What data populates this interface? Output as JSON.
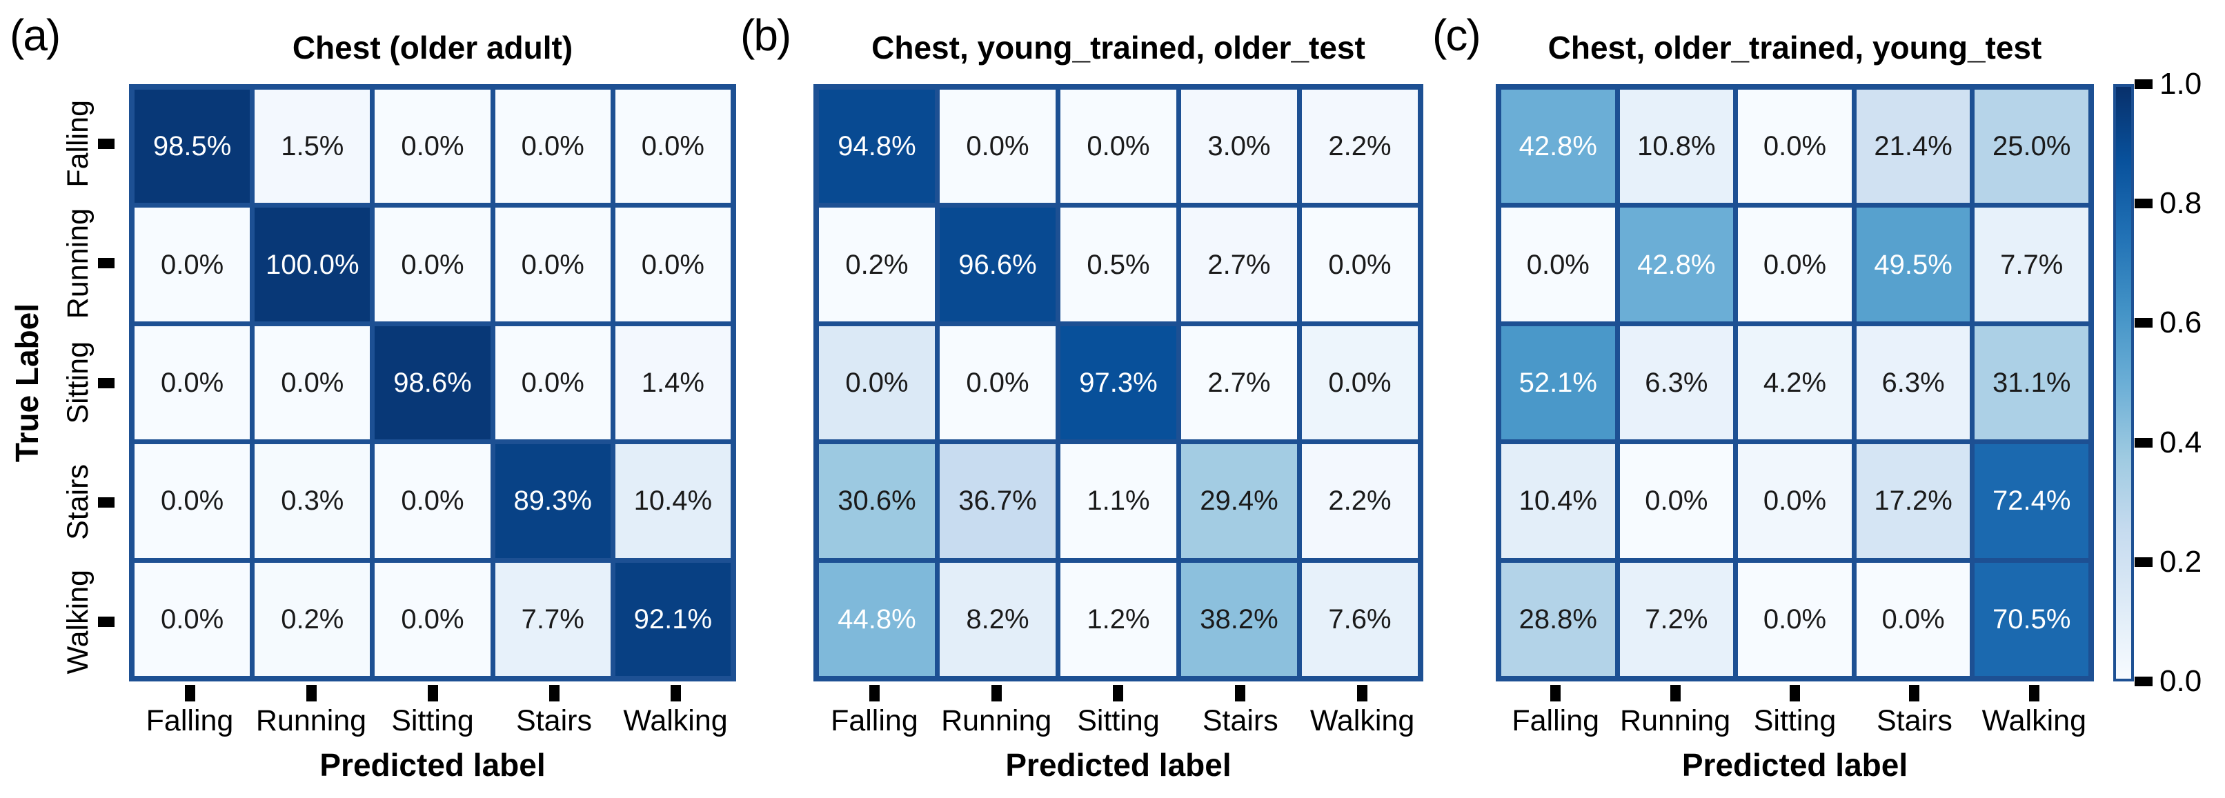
{
  "figure": {
    "classes": [
      "Falling",
      "Running",
      "Sitting",
      "Stairs",
      "Walking"
    ],
    "x_axis_label": "Predicted label",
    "y_axis_label": "True Label",
    "colorbar_ticks": [
      "1.0",
      "0.8",
      "0.6",
      "0.4",
      "0.2",
      "0.0"
    ],
    "colors": {
      "border": "#1d5093",
      "cell_text_dark": "#1a1a1a",
      "cell_text_light": "#ffffff",
      "cmap": [
        "#f7fbff",
        "#deebf7",
        "#c6dbef",
        "#9ecae1",
        "#6baed6",
        "#4292c6",
        "#2171b5",
        "#08519c",
        "#08306b"
      ]
    },
    "panels": [
      {
        "letter": "(a)",
        "title": "Chest (older adult)",
        "rows": [
          [
            {
              "v": "98.5%",
              "s": 0.97,
              "w": true
            },
            {
              "v": "1.5%",
              "s": 0.02
            },
            {
              "v": "0.0%",
              "s": 0
            },
            {
              "v": "0.0%",
              "s": 0
            },
            {
              "v": "0.0%",
              "s": 0
            }
          ],
          [
            {
              "v": "0.0%",
              "s": 0
            },
            {
              "v": "100.0%",
              "s": 0.97,
              "w": true
            },
            {
              "v": "0.0%",
              "s": 0
            },
            {
              "v": "0.0%",
              "s": 0
            },
            {
              "v": "0.0%",
              "s": 0
            }
          ],
          [
            {
              "v": "0.0%",
              "s": 0
            },
            {
              "v": "0.0%",
              "s": 0
            },
            {
              "v": "98.6%",
              "s": 0.97,
              "w": true
            },
            {
              "v": "0.0%",
              "s": 0
            },
            {
              "v": "1.4%",
              "s": 0.02
            }
          ],
          [
            {
              "v": "0.0%",
              "s": 0
            },
            {
              "v": "0.3%",
              "s": 0.01
            },
            {
              "v": "0.0%",
              "s": 0
            },
            {
              "v": "89.3%",
              "s": 0.93,
              "w": true
            },
            {
              "v": "10.4%",
              "s": 0.1
            }
          ],
          [
            {
              "v": "0.0%",
              "s": 0
            },
            {
              "v": "0.2%",
              "s": 0.01
            },
            {
              "v": "0.0%",
              "s": 0
            },
            {
              "v": "7.7%",
              "s": 0.08
            },
            {
              "v": "92.1%",
              "s": 0.94,
              "w": true
            }
          ]
        ]
      },
      {
        "letter": "(b)",
        "title": "Chest, young_trained, older_test",
        "rows": [
          [
            {
              "v": "94.8%",
              "s": 0.9,
              "w": true
            },
            {
              "v": "0.0%",
              "s": 0
            },
            {
              "v": "0.0%",
              "s": 0
            },
            {
              "v": "3.0%",
              "s": 0.02
            },
            {
              "v": "2.2%",
              "s": 0.02
            }
          ],
          [
            {
              "v": "0.2%",
              "s": 0
            },
            {
              "v": "96.6%",
              "s": 0.9,
              "w": true
            },
            {
              "v": "0.5%",
              "s": 0
            },
            {
              "v": "2.7%",
              "s": 0.02
            },
            {
              "v": "0.0%",
              "s": 0
            }
          ],
          [
            {
              "v": "0.0%",
              "s": 0.14
            },
            {
              "v": "0.0%",
              "s": 0
            },
            {
              "v": "97.3%",
              "s": 0.88,
              "w": true
            },
            {
              "v": "2.7%",
              "s": 0
            },
            {
              "v": "0.0%",
              "s": 0.05
            }
          ],
          [
            {
              "v": "30.6%",
              "s": 0.38
            },
            {
              "v": "36.7%",
              "s": 0.24
            },
            {
              "v": "1.1%",
              "s": 0
            },
            {
              "v": "29.4%",
              "s": 0.36
            },
            {
              "v": "2.2%",
              "s": 0.02
            }
          ],
          [
            {
              "v": "44.8%",
              "s": 0.45,
              "w": true
            },
            {
              "v": "8.2%",
              "s": 0.1
            },
            {
              "v": "1.2%",
              "s": 0
            },
            {
              "v": "38.2%",
              "s": 0.42
            },
            {
              "v": "7.6%",
              "s": 0.08
            }
          ]
        ]
      },
      {
        "letter": "(c)",
        "title": "Chest, older_trained, young_test",
        "rows": [
          [
            {
              "v": "42.8%",
              "s": 0.5,
              "w": true
            },
            {
              "v": "10.8%",
              "s": 0.08
            },
            {
              "v": "0.0%",
              "s": 0
            },
            {
              "v": "21.4%",
              "s": 0.2
            },
            {
              "v": "25.0%",
              "s": 0.3
            }
          ],
          [
            {
              "v": "0.0%",
              "s": 0
            },
            {
              "v": "42.8%",
              "s": 0.5,
              "w": true
            },
            {
              "v": "0.0%",
              "s": 0
            },
            {
              "v": "49.5%",
              "s": 0.56,
              "w": true
            },
            {
              "v": "7.7%",
              "s": 0.08
            }
          ],
          [
            {
              "v": "52.1%",
              "s": 0.6,
              "w": true
            },
            {
              "v": "6.3%",
              "s": 0.07
            },
            {
              "v": "4.2%",
              "s": 0.05
            },
            {
              "v": "6.3%",
              "s": 0.07
            },
            {
              "v": "31.1%",
              "s": 0.33
            }
          ],
          [
            {
              "v": "10.4%",
              "s": 0.1
            },
            {
              "v": "0.0%",
              "s": 0
            },
            {
              "v": "0.0%",
              "s": 0.03
            },
            {
              "v": "17.2%",
              "s": 0.17
            },
            {
              "v": "72.4%",
              "s": 0.78,
              "w": true
            }
          ],
          [
            {
              "v": "28.8%",
              "s": 0.31
            },
            {
              "v": "7.2%",
              "s": 0.08
            },
            {
              "v": "0.0%",
              "s": 0
            },
            {
              "v": "0.0%",
              "s": 0
            },
            {
              "v": "70.5%",
              "s": 0.78,
              "w": true
            }
          ]
        ]
      }
    ]
  },
  "chart_data": [
    {
      "type": "heatmap",
      "subtype": "confusion-matrix",
      "title": "Chest (older adult)",
      "xlabel": "Predicted label",
      "ylabel": "True Label",
      "x_categories": [
        "Falling",
        "Running",
        "Sitting",
        "Stairs",
        "Walking"
      ],
      "y_categories": [
        "Falling",
        "Running",
        "Sitting",
        "Stairs",
        "Walking"
      ],
      "values_percent": [
        [
          98.5,
          1.5,
          0.0,
          0.0,
          0.0
        ],
        [
          0.0,
          100.0,
          0.0,
          0.0,
          0.0
        ],
        [
          0.0,
          0.0,
          98.6,
          0.0,
          1.4
        ],
        [
          0.0,
          0.3,
          0.0,
          89.3,
          10.4
        ],
        [
          0.0,
          0.2,
          0.0,
          7.7,
          92.1
        ]
      ],
      "colormap": "Blues",
      "colorbar_range": [
        0.0,
        1.0
      ],
      "colorbar_ticks": [
        1.0,
        0.8,
        0.6,
        0.4,
        0.2,
        0.0
      ],
      "legend_position": "right"
    },
    {
      "type": "heatmap",
      "subtype": "confusion-matrix",
      "title": "Chest, young_trained, older_test",
      "xlabel": "Predicted label",
      "ylabel": "True Label",
      "x_categories": [
        "Falling",
        "Running",
        "Sitting",
        "Stairs",
        "Walking"
      ],
      "y_categories": [
        "Falling",
        "Running",
        "Sitting",
        "Stairs",
        "Walking"
      ],
      "values_percent": [
        [
          94.8,
          0.0,
          0.0,
          3.0,
          2.2
        ],
        [
          0.2,
          96.6,
          0.5,
          2.7,
          0.0
        ],
        [
          0.0,
          0.0,
          97.3,
          2.7,
          0.0
        ],
        [
          30.6,
          36.7,
          1.1,
          29.4,
          2.2
        ],
        [
          44.8,
          8.2,
          1.2,
          38.2,
          7.6
        ]
      ],
      "colormap": "Blues",
      "colorbar_range": [
        0.0,
        1.0
      ],
      "colorbar_ticks": [
        1.0,
        0.8,
        0.6,
        0.4,
        0.2,
        0.0
      ],
      "legend_position": "right"
    },
    {
      "type": "heatmap",
      "subtype": "confusion-matrix",
      "title": "Chest, older_trained, young_test",
      "xlabel": "Predicted label",
      "ylabel": "True Label",
      "x_categories": [
        "Falling",
        "Running",
        "Sitting",
        "Stairs",
        "Walking"
      ],
      "y_categories": [
        "Falling",
        "Running",
        "Sitting",
        "Stairs",
        "Walking"
      ],
      "values_percent": [
        [
          42.8,
          10.8,
          0.0,
          21.4,
          25.0
        ],
        [
          0.0,
          42.8,
          0.0,
          49.5,
          7.7
        ],
        [
          52.1,
          6.3,
          4.2,
          6.3,
          31.1
        ],
        [
          10.4,
          0.0,
          0.0,
          17.2,
          72.4
        ],
        [
          28.8,
          7.2,
          0.0,
          0.0,
          70.5
        ]
      ],
      "colormap": "Blues",
      "colorbar_range": [
        0.0,
        1.0
      ],
      "colorbar_ticks": [
        1.0,
        0.8,
        0.6,
        0.4,
        0.2,
        0.0
      ],
      "legend_position": "right"
    }
  ]
}
